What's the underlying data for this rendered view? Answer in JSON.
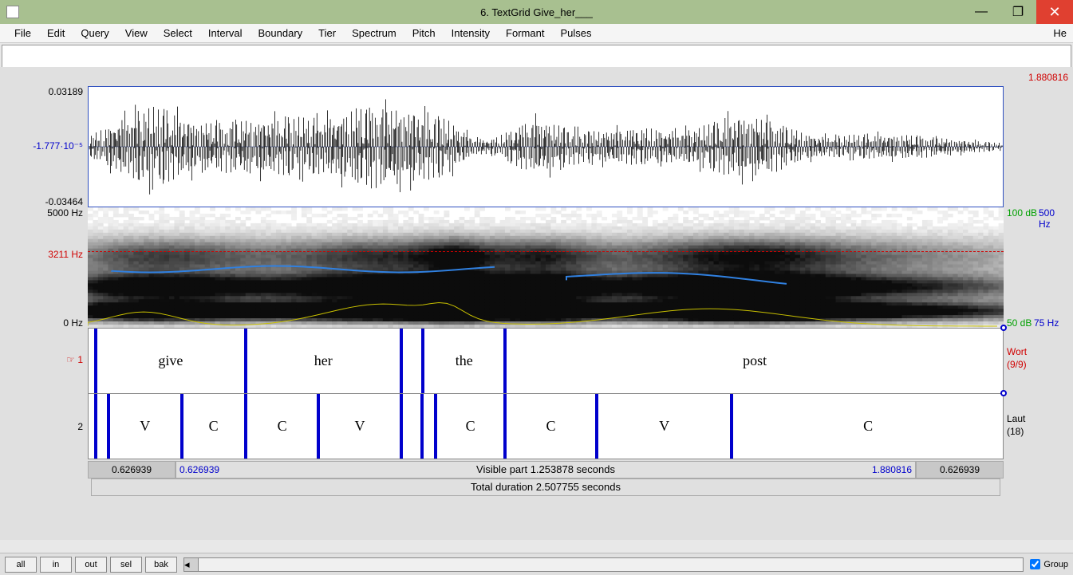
{
  "window": {
    "title": "6. TextGrid Give_her___",
    "min_label": "—",
    "max_label": "❐",
    "close_label": "✕"
  },
  "menu": {
    "items": [
      "File",
      "Edit",
      "Query",
      "View",
      "Select",
      "Interval",
      "Boundary",
      "Tier",
      "Spectrum",
      "Pitch",
      "Intensity",
      "Formant",
      "Pulses"
    ],
    "right": "He"
  },
  "colors": {
    "titlebar_bg": "#a8c090",
    "close_bg": "#e04030",
    "boundary": "#0000cc",
    "time_red": "#d00000",
    "time_blue": "#0000cc",
    "green": "#00a000",
    "pitch": "#3080e0",
    "intensity": "#c8c000"
  },
  "waveform": {
    "y_top": "0.03189",
    "y_mid": "-1.777·10⁻⁵",
    "y_bot": "-0.03464",
    "mid_color": "#0000cc"
  },
  "spectrogram": {
    "y_top": "5000 Hz",
    "y_mid": "3211 Hz",
    "y_bot": "0 Hz",
    "r_top_green": "100 dB",
    "r_top_blue": "500 Hz",
    "r_bot_green": "50 dB",
    "r_bot_blue": "75 Hz",
    "mid_color": "#d00000"
  },
  "tiers": [
    {
      "name": "Wort",
      "count": "(9/9)",
      "left_marker": "☞ 1",
      "left_color": "#d00000",
      "right_color": "#d00000",
      "segments": [
        {
          "label": "",
          "width_pct": 0.6
        },
        {
          "label": "give",
          "width_pct": 16.4
        },
        {
          "label": "her",
          "width_pct": 17.0
        },
        {
          "label": "",
          "width_pct": 2.4
        },
        {
          "label": "the",
          "width_pct": 9.0
        },
        {
          "label": "post",
          "width_pct": 54.6
        }
      ]
    },
    {
      "name": "Laut",
      "count": "(18)",
      "left_marker": "2",
      "left_color": "#000000",
      "right_color": "#000000",
      "segments": [
        {
          "label": "",
          "width_pct": 0.6
        },
        {
          "label": "",
          "width_pct": 1.4
        },
        {
          "label": "V",
          "width_pct": 8.0
        },
        {
          "label": "C",
          "width_pct": 7.0
        },
        {
          "label": "C",
          "width_pct": 8.0
        },
        {
          "label": "V",
          "width_pct": 9.0
        },
        {
          "label": "",
          "width_pct": 2.3
        },
        {
          "label": "",
          "width_pct": 1.5
        },
        {
          "label": "C",
          "width_pct": 7.6
        },
        {
          "label": "C",
          "width_pct": 10.0
        },
        {
          "label": "V",
          "width_pct": 14.8
        },
        {
          "label": "C",
          "width_pct": 29.8
        }
      ]
    }
  ],
  "time": {
    "top_right": "1.880816",
    "vis_left": "0.626939",
    "vis_right": "1.880816",
    "pad_left": "0.626939",
    "pad_right": "0.626939",
    "visible_text": "Visible part 1.253878 seconds",
    "total_text": "Total duration 2.507755 seconds"
  },
  "footer": {
    "buttons": [
      "all",
      "in",
      "out",
      "sel",
      "bak"
    ],
    "group_label": "Group"
  }
}
